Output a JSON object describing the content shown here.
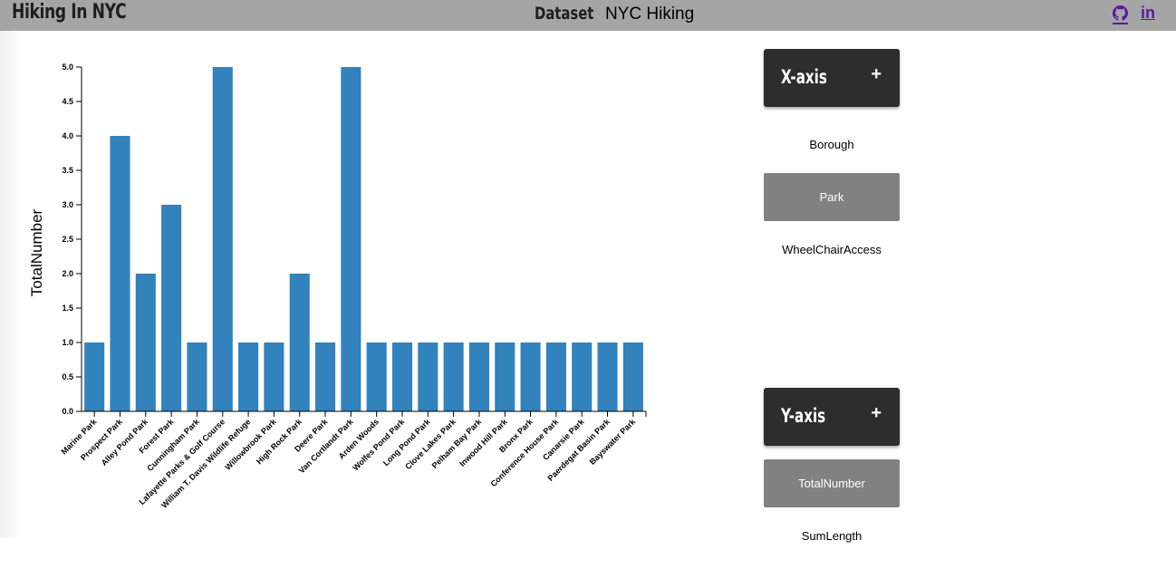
{
  "header": {
    "app_title": "Hiking In NYC",
    "dataset_label": "Dataset",
    "dataset_value": "NYC Hiking",
    "linkedin_label": "in"
  },
  "colors": {
    "bar": "#3182bd",
    "header_bg": "#a5a5a5",
    "link": "#5b1aa0",
    "panel_button": "#2d2d2e",
    "selected_option": "#818181"
  },
  "icons": {
    "github": "github-icon",
    "linkedin": "linkedin-icon"
  },
  "controls": {
    "x_axis": {
      "title": "X-axis",
      "toggle": "+",
      "options": [
        {
          "label": "Borough",
          "selected": false
        },
        {
          "label": "Park",
          "selected": true
        },
        {
          "label": "WheelChairAccess",
          "selected": false
        }
      ]
    },
    "y_axis": {
      "title": "Y-axis",
      "toggle": "+",
      "options": [
        {
          "label": "TotalNumber",
          "selected": true
        },
        {
          "label": "SumLength",
          "selected": false
        }
      ]
    }
  },
  "chart_data": {
    "type": "bar",
    "title": "",
    "xlabel": "",
    "ylabel": "TotalNumber",
    "ylim": [
      0,
      5
    ],
    "yticks": [
      "0.0",
      "0.5",
      "1.0",
      "1.5",
      "2.0",
      "2.5",
      "3.0",
      "3.5",
      "4.0",
      "4.5",
      "5.0"
    ],
    "categories": [
      "Marine Park",
      "Prospect Park",
      "Alley Pond Park",
      "Forest Park",
      "Cunningham Park",
      "Lafayette Parks & Golf Course",
      "William T. Davis Wildlife Refuge",
      "Willowbrook Park",
      "High Rock Park",
      "Deere Park",
      "Van Cortlandt Park",
      "Arden Woods",
      "Wolfes Pond Park",
      "Long Pond Park",
      "Clove Lakes Park",
      "Pelham Bay Park",
      "Inwood Hill Park",
      "Bronx Park",
      "Conference House Park",
      "Canarsie Park",
      "Paerdegat Basin Park",
      "Bayswater Park"
    ],
    "values": [
      1,
      4,
      2,
      3,
      1,
      5,
      1,
      1,
      2,
      1,
      5,
      1,
      1,
      1,
      1,
      1,
      1,
      1,
      1,
      1,
      1,
      1
    ],
    "grid": false,
    "legend": "none"
  }
}
